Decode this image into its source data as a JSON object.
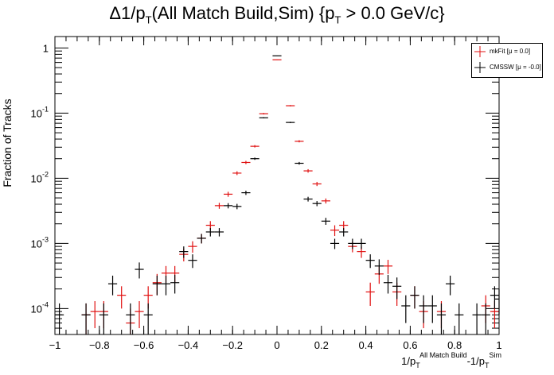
{
  "chart_data": {
    "type": "scatter",
    "title_parts": [
      "Δ1/p",
      "T",
      "(All Match Build,Sim) {p",
      "T",
      " > 0.0 GeV/c}"
    ],
    "xlabel_parts": [
      "1/p",
      "T",
      "All Match Build",
      "-1/p",
      "T",
      "Sim"
    ],
    "ylabel": "Fraction of Tracks",
    "xlim": [
      -1,
      1
    ],
    "ylim": [
      4e-05,
      1.5
    ],
    "yscale": "log",
    "x_ticks": [
      "−1",
      "−0.8",
      "−0.6",
      "−0.4",
      "−0.2",
      "0",
      "0.2",
      "0.4",
      "0.6",
      "0.8",
      "1"
    ],
    "y_ticks": [
      {
        "base": "10",
        "exp": "-4",
        "value": 0.0001
      },
      {
        "base": "10",
        "exp": "-3",
        "value": 0.001
      },
      {
        "base": "10",
        "exp": "-2",
        "value": 0.01
      },
      {
        "base": "10",
        "exp": "-1",
        "value": 0.1
      },
      {
        "base": "1",
        "exp": "",
        "value": 1
      }
    ],
    "bin_width": 0.04,
    "legend_position": "top-right",
    "series": [
      {
        "name": "mkFit  [μ = 0.0]",
        "color": "#e01010",
        "points": [
          [
            -0.86,
            8e-05,
            4e-05
          ],
          [
            -0.82,
            9e-05,
            4e-05
          ],
          [
            -0.78,
            9e-05,
            4e-05
          ],
          [
            -0.7,
            0.00016,
            6e-05
          ],
          [
            -0.66,
            6e-05,
            4e-05
          ],
          [
            -0.62,
            9e-05,
            4e-05
          ],
          [
            -0.58,
            0.00016,
            6e-05
          ],
          [
            -0.54,
            0.00025,
            9e-05
          ],
          [
            -0.5,
            0.00035,
            0.0001
          ],
          [
            -0.46,
            0.00035,
            0.0001
          ],
          [
            -0.42,
            0.00068,
            0.00015
          ],
          [
            -0.38,
            0.0009,
            0.00018
          ],
          [
            -0.34,
            0.0012,
            0.0002
          ],
          [
            -0.3,
            0.0019,
            0.0003
          ],
          [
            -0.26,
            0.0038,
            0.0004
          ],
          [
            -0.22,
            0.0057,
            0.0005
          ],
          [
            -0.18,
            0.012,
            0.0008
          ],
          [
            -0.14,
            0.0175,
            0.001
          ],
          [
            -0.1,
            0.031,
            0.0013
          ],
          [
            -0.06,
            0.098,
            0.0025
          ],
          [
            0.0,
            0.66,
            0.006
          ],
          [
            0.06,
            0.13,
            0.003
          ],
          [
            0.1,
            0.037,
            0.0014
          ],
          [
            0.14,
            0.013,
            0.0008
          ],
          [
            0.18,
            0.0082,
            0.0006
          ],
          [
            0.22,
            0.0045,
            0.0004
          ],
          [
            0.26,
            0.0016,
            0.0003
          ],
          [
            0.3,
            0.0019,
            0.0003
          ],
          [
            0.34,
            0.0009,
            0.00017
          ],
          [
            0.38,
            0.00075,
            0.00015
          ],
          [
            0.42,
            0.00018,
            7e-05
          ],
          [
            0.46,
            0.00034,
            0.0001
          ],
          [
            0.5,
            0.00045,
            0.00011
          ],
          [
            0.54,
            0.00018,
            7e-05
          ],
          [
            0.62,
            0.00016,
            6e-05
          ],
          [
            0.66,
            9e-05,
            4e-05
          ],
          [
            0.74,
            9e-05,
            4e-05
          ],
          [
            0.94,
            0.00011,
            5e-05
          ],
          [
            0.98,
            9e-05,
            4e-05
          ]
        ]
      },
      {
        "name": "CMSSW  [μ = -0.0]",
        "color": "#000000",
        "points": [
          [
            -0.98,
            8e-05,
            4e-05
          ],
          [
            -0.86,
            8e-05,
            4e-05
          ],
          [
            -0.78,
            8e-05,
            4e-05
          ],
          [
            -0.74,
            0.00024,
            8e-05
          ],
          [
            -0.66,
            8e-05,
            4e-05
          ],
          [
            -0.62,
            0.0004,
            0.00011
          ],
          [
            -0.58,
            8e-05,
            4e-05
          ],
          [
            -0.54,
            0.00024,
            8e-05
          ],
          [
            -0.5,
            0.00024,
            8e-05
          ],
          [
            -0.46,
            0.00025,
            8e-05
          ],
          [
            -0.42,
            0.00075,
            0.00015
          ],
          [
            -0.38,
            0.00055,
            0.00013
          ],
          [
            -0.34,
            0.0012,
            0.0002
          ],
          [
            -0.3,
            0.0015,
            0.00022
          ],
          [
            -0.26,
            0.0015,
            0.00022
          ],
          [
            -0.22,
            0.0038,
            0.00035
          ],
          [
            -0.18,
            0.0037,
            0.00035
          ],
          [
            -0.14,
            0.006,
            0.00045
          ],
          [
            -0.1,
            0.02,
            0.0008
          ],
          [
            -0.06,
            0.085,
            0.0018
          ],
          [
            0.0,
            0.76,
            0.005
          ],
          [
            0.06,
            0.072,
            0.0017
          ],
          [
            0.1,
            0.017,
            0.0008
          ],
          [
            0.14,
            0.0048,
            0.0004
          ],
          [
            0.18,
            0.0041,
            0.00037
          ],
          [
            0.22,
            0.0022,
            0.00027
          ],
          [
            0.26,
            0.001,
            0.00018
          ],
          [
            0.3,
            0.0015,
            0.00022
          ],
          [
            0.34,
            0.001,
            0.00018
          ],
          [
            0.38,
            0.001,
            0.00018
          ],
          [
            0.42,
            0.00055,
            0.00013
          ],
          [
            0.46,
            0.00045,
            0.00012
          ],
          [
            0.5,
            0.00025,
            8e-05
          ],
          [
            0.54,
            0.00022,
            8e-05
          ],
          [
            0.58,
            0.00011,
            5e-05
          ],
          [
            0.62,
            0.00016,
            6e-05
          ],
          [
            0.66,
            0.00011,
            5e-05
          ],
          [
            0.7,
            0.00011,
            5e-05
          ],
          [
            0.74,
            8e-05,
            4e-05
          ],
          [
            0.78,
            0.00024,
            8e-05
          ],
          [
            0.82,
            8e-05,
            4e-05
          ],
          [
            0.9,
            8e-05,
            4e-05
          ],
          [
            0.94,
            8e-05,
            4e-05
          ],
          [
            0.98,
            0.00016,
            6e-05
          ],
          [
            1.0,
            0.00014,
            6e-05
          ]
        ]
      }
    ]
  }
}
